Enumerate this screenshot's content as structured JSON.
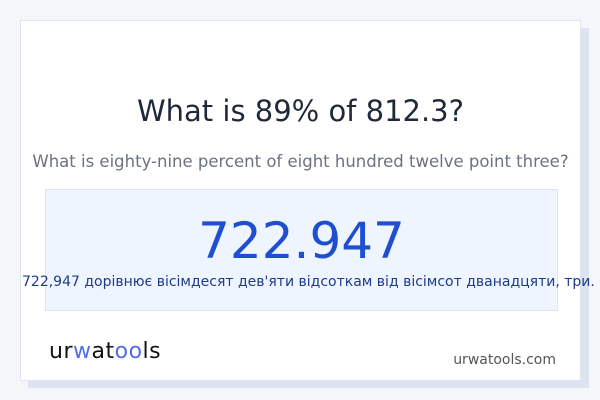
{
  "title": "What is 89% of 812.3?",
  "subtitle": "What is eighty-nine percent of eight hundred twelve point three?",
  "answer": "722.947",
  "answer_words": "722,947 дорівнює вісімдесят дев'яти відсоткам від вісімсот дванадцяти, три.",
  "logo": {
    "part1": "ur",
    "part2": "w",
    "part3": "at",
    "part4": "oo",
    "part5": "ls",
    "brand_color": "#4f6ee8"
  },
  "site": "urwatools.com"
}
